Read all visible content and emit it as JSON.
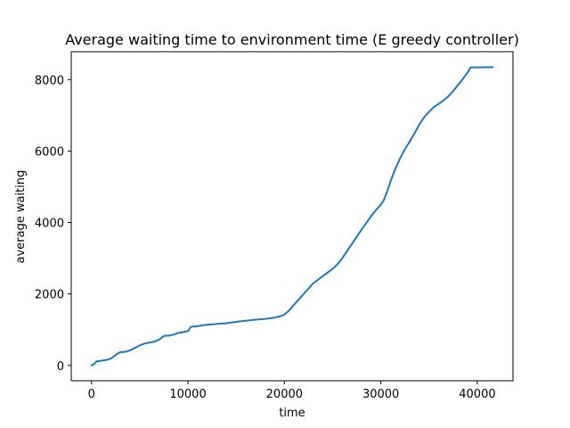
{
  "chart_data": {
    "type": "line",
    "title": "Average waiting time to environment time (E greedy controller)",
    "xlabel": "time",
    "ylabel": "average waiting",
    "xlim": [
      -2100,
      43700
    ],
    "ylim": [
      -430,
      8780
    ],
    "xticks": [
      0,
      10000,
      20000,
      30000,
      40000
    ],
    "xtick_labels": [
      "0",
      "10000",
      "20000",
      "30000",
      "40000"
    ],
    "yticks": [
      0,
      2000,
      4000,
      6000,
      8000
    ],
    "ytick_labels": [
      "0",
      "2000",
      "4000",
      "6000",
      "8000"
    ],
    "grid": false,
    "series": [
      {
        "color": "#1f77b4",
        "x": [
          0,
          300,
          500,
          700,
          1000,
          1500,
          2000,
          2300,
          2700,
          3000,
          3500,
          4000,
          4500,
          5000,
          5500,
          6000,
          6500,
          7000,
          7500,
          7700,
          8000,
          8500,
          9000,
          9500,
          10000,
          10300,
          10700,
          11000,
          11500,
          12000,
          12500,
          13000,
          14000,
          15000,
          16000,
          17000,
          18000,
          19000,
          19500,
          20000,
          20500,
          21000,
          21500,
          22000,
          22500,
          23000,
          23500,
          24000,
          24500,
          25000,
          25500,
          26000,
          26500,
          27000,
          27500,
          28000,
          28500,
          29000,
          29500,
          30000,
          30300,
          30700,
          31000,
          31500,
          32000,
          32500,
          33000,
          33500,
          34000,
          34500,
          35000,
          35500,
          36000,
          36500,
          37000,
          37500,
          38000,
          38500,
          39000,
          39300,
          40000,
          41000,
          41600
        ],
        "y": [
          0,
          40,
          110,
          120,
          130,
          150,
          190,
          250,
          330,
          370,
          380,
          420,
          490,
          560,
          610,
          640,
          660,
          720,
          820,
          830,
          830,
          860,
          910,
          930,
          960,
          1080,
          1090,
          1100,
          1120,
          1140,
          1150,
          1160,
          1180,
          1220,
          1250,
          1280,
          1300,
          1340,
          1370,
          1420,
          1540,
          1700,
          1850,
          2000,
          2150,
          2300,
          2400,
          2500,
          2600,
          2700,
          2830,
          3000,
          3200,
          3400,
          3600,
          3800,
          3990,
          4180,
          4350,
          4500,
          4620,
          4900,
          5150,
          5500,
          5800,
          6050,
          6270,
          6500,
          6750,
          6950,
          7100,
          7230,
          7320,
          7420,
          7530,
          7680,
          7850,
          8020,
          8200,
          8340,
          8340,
          8345,
          8345
        ]
      }
    ]
  }
}
